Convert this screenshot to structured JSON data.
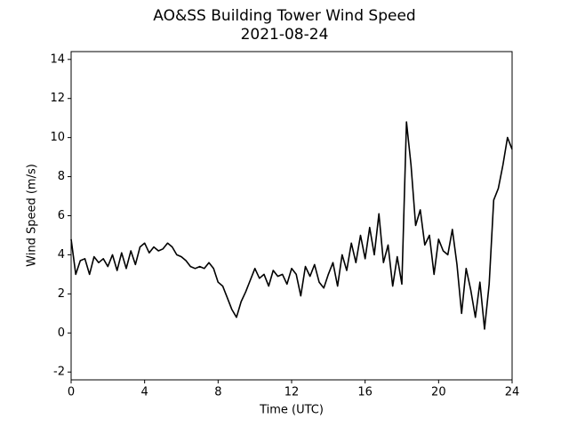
{
  "chart_data": {
    "type": "line",
    "title": "AO&SS Building Tower Wind Speed",
    "subtitle": "2021-08-24",
    "x_label": "Time (UTC)",
    "y_label": "Wind Speed (m/s)",
    "x": [
      0,
      0.25,
      0.5,
      0.75,
      1,
      1.25,
      1.5,
      1.75,
      2,
      2.25,
      2.5,
      2.75,
      3,
      3.25,
      3.5,
      3.75,
      4,
      4.25,
      4.5,
      4.75,
      5,
      5.25,
      5.5,
      5.75,
      6,
      6.25,
      6.5,
      6.75,
      7,
      7.25,
      7.5,
      7.75,
      8,
      8.25,
      8.5,
      8.75,
      9,
      9.25,
      9.5,
      9.75,
      10,
      10.25,
      10.5,
      10.75,
      11,
      11.25,
      11.5,
      11.75,
      12,
      12.25,
      12.5,
      12.75,
      13,
      13.25,
      13.5,
      13.75,
      14,
      14.25,
      14.5,
      14.75,
      15,
      15.25,
      15.5,
      15.75,
      16,
      16.25,
      16.5,
      16.75,
      17,
      17.25,
      17.5,
      17.75,
      18,
      18.25,
      18.5,
      18.75,
      19,
      19.25,
      19.5,
      19.75,
      20,
      20.25,
      20.5,
      20.75,
      21,
      21.25,
      21.5,
      21.75,
      22,
      22.25,
      22.5,
      22.75,
      23,
      23.25,
      23.5,
      23.75,
      24
    ],
    "series": [
      {
        "name": "Wind Speed",
        "color": "#000000",
        "values": [
          4.8,
          3.0,
          3.7,
          3.8,
          3.0,
          3.9,
          3.6,
          3.8,
          3.4,
          4.0,
          3.2,
          4.1,
          3.3,
          4.2,
          3.5,
          4.4,
          4.6,
          4.1,
          4.4,
          4.2,
          4.3,
          4.6,
          4.4,
          4.0,
          3.9,
          3.7,
          3.4,
          3.3,
          3.4,
          3.3,
          3.6,
          3.3,
          2.6,
          2.4,
          1.8,
          1.2,
          0.8,
          1.6,
          2.1,
          2.7,
          3.3,
          2.8,
          3.0,
          2.4,
          3.2,
          2.9,
          3.0,
          2.5,
          3.3,
          3.0,
          1.9,
          3.4,
          2.9,
          3.5,
          2.6,
          2.3,
          3.0,
          3.6,
          2.4,
          4.0,
          3.2,
          4.6,
          3.6,
          5.0,
          3.8,
          5.4,
          4.0,
          6.1,
          3.6,
          4.5,
          2.4,
          3.9,
          2.5,
          10.8,
          8.6,
          5.5,
          6.3,
          4.5,
          5.0,
          3.0,
          4.8,
          4.2,
          4.0,
          5.3,
          3.5,
          1.0,
          3.3,
          2.2,
          0.8,
          2.6,
          0.2,
          2.5,
          6.8,
          7.4,
          8.6,
          10.0,
          9.4
        ]
      }
    ],
    "xlim": [
      0,
      24
    ],
    "xticks": [
      0,
      4,
      8,
      12,
      16,
      20,
      24
    ],
    "ylim": [
      -2.4,
      14.4
    ],
    "yticks": [
      -2,
      0,
      2,
      4,
      6,
      8,
      10,
      12,
      14
    ],
    "grid": false
  }
}
